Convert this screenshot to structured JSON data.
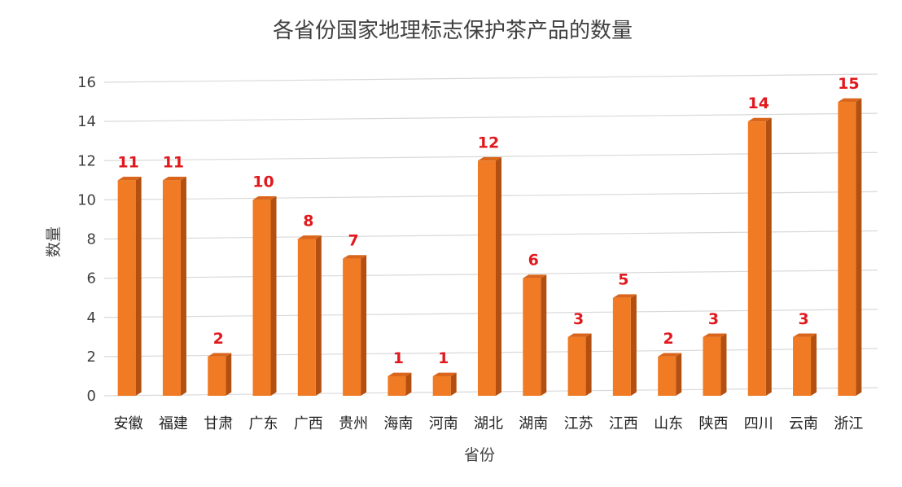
{
  "chart_data": {
    "type": "bar",
    "title": "各省份国家地理标志保护茶产品的数量",
    "xlabel": "省份",
    "ylabel": "数量",
    "categories": [
      "安徽",
      "福建",
      "甘肃",
      "广东",
      "广西",
      "贵州",
      "海南",
      "河南",
      "湖北",
      "湖南",
      "江苏",
      "江西",
      "山东",
      "陕西",
      "四川",
      "云南",
      "浙江"
    ],
    "values": [
      11,
      11,
      2,
      10,
      8,
      7,
      1,
      1,
      12,
      6,
      3,
      5,
      2,
      3,
      14,
      3,
      15
    ],
    "ylim": [
      0,
      16
    ],
    "yticks": [
      "0",
      "2",
      "4",
      "6",
      "8",
      "10",
      "12",
      "14",
      "16"
    ],
    "grid": true,
    "legend": "none",
    "data_labels": true
  },
  "colors": {
    "bar_front": "#f07b24",
    "bar_side": "#b34f10",
    "bar_top": "#d9661c",
    "label": "#e1191e"
  }
}
